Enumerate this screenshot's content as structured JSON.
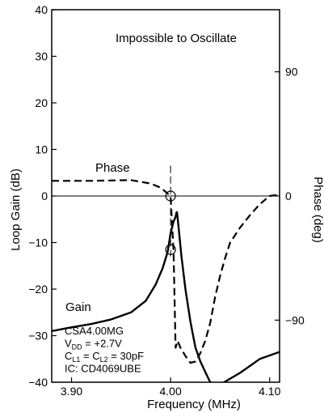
{
  "chart_data": {
    "type": "line",
    "title": "",
    "xlabel": "Frequency (MHz)",
    "ylabel_left": "Loop Gain (dB)",
    "ylabel_right": "Phase (deg)",
    "xlim": [
      3.88,
      4.11
    ],
    "ylim_left": [
      -40,
      40
    ],
    "ylim_right": [
      -135,
      135
    ],
    "x_ticks": [
      3.9,
      4.0,
      4.1
    ],
    "x_tick_labels": [
      "3.90",
      "4.00",
      "4.10"
    ],
    "y_left_ticks": [
      40,
      30,
      20,
      10,
      0,
      -10,
      -20,
      -30,
      -40
    ],
    "y_left_tick_labels": [
      "40",
      "30",
      "20",
      "10",
      "0",
      "−10",
      "−20",
      "−30",
      "−40"
    ],
    "y_right_ticks": [
      90,
      0,
      -90
    ],
    "y_right_tick_labels": [
      "90",
      "0",
      "−90"
    ],
    "grid": false,
    "annotations": {
      "top": "Impossible to Oscillate",
      "phase_label": "Phase",
      "gain_label": "Gain",
      "info_lines": [
        {
          "parts": [
            {
              "t": "CSA4.00MG"
            }
          ]
        },
        {
          "parts": [
            {
              "t": "V"
            },
            {
              "t": "DD",
              "sub": true
            },
            {
              "t": " = +2.7V"
            }
          ]
        },
        {
          "parts": [
            {
              "t": "C"
            },
            {
              "t": "L1",
              "sub": true
            },
            {
              "t": " = C"
            },
            {
              "t": "L2",
              "sub": true
            },
            {
              "t": " = 30pF"
            }
          ]
        },
        {
          "parts": [
            {
              "t": "IC: CD4069UBE"
            }
          ]
        }
      ]
    },
    "series": [
      {
        "name": "Gain",
        "axis": "left",
        "style": "solid",
        "x": [
          3.88,
          3.9,
          3.92,
          3.94,
          3.96,
          3.975,
          3.985,
          3.992,
          3.997,
          4.0,
          4.003,
          4.005,
          4.006,
          4.0065,
          4.008,
          4.011,
          4.015,
          4.02,
          4.025,
          4.03,
          4.035,
          4.04,
          4.05,
          4.07,
          4.09,
          4.11
        ],
        "values": [
          -29,
          -28.2,
          -27.5,
          -26.5,
          -25,
          -22.5,
          -19,
          -15.5,
          -12,
          -8,
          -5.5,
          -4.5,
          -3.5,
          -3.5,
          -6.5,
          -13,
          -20,
          -27,
          -32.5,
          -35.5,
          -37.8,
          -40,
          -40.5,
          -38,
          -35,
          -33.5
        ]
      },
      {
        "name": "Phase",
        "axis": "right",
        "style": "dashed",
        "x": [
          3.88,
          3.92,
          3.96,
          3.98,
          3.99,
          3.995,
          4.0,
          4.003,
          4.005,
          4.007,
          4.01,
          4.015,
          4.02,
          4.025,
          4.03,
          4.035,
          4.04,
          4.045,
          4.05,
          4.055,
          4.06,
          4.07,
          4.08,
          4.09,
          4.1,
          4.11
        ],
        "values": [
          11,
          11,
          11.5,
          9,
          6,
          3,
          0,
          -40,
          -110,
          -105,
          -110,
          -116,
          -121,
          -120,
          -114,
          -105,
          -92,
          -73,
          -58,
          -45,
          -34,
          -23,
          -14,
          -6,
          0,
          1
        ]
      }
    ],
    "reference_lines": {
      "vertical_x": 4.0,
      "horizontal_y": 0
    },
    "markers": [
      {
        "x": 4.0,
        "y_left": 0
      },
      {
        "x": 4.0,
        "y_left": -11.5
      }
    ]
  }
}
